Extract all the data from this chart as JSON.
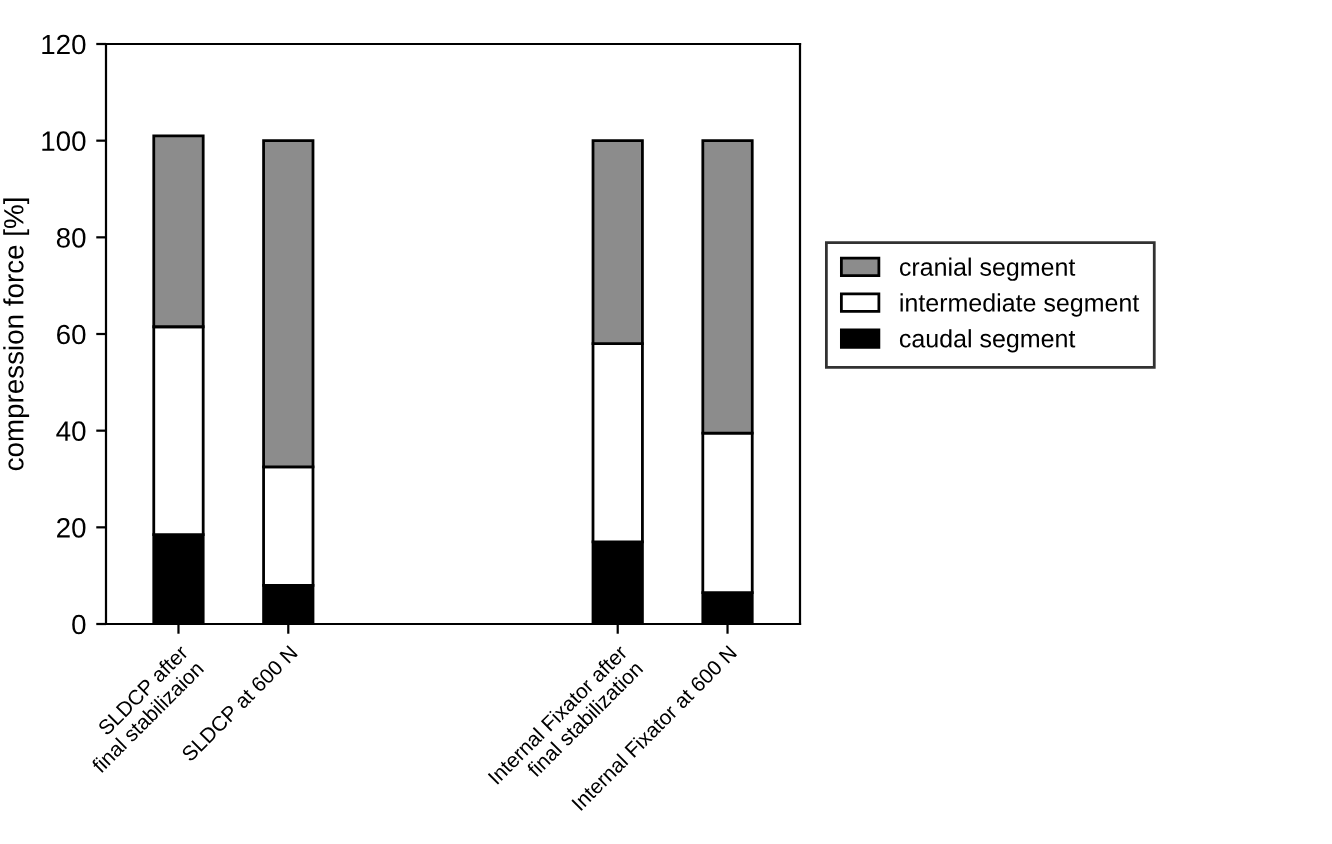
{
  "chart_data": {
    "type": "bar",
    "stacked": true,
    "ylabel": "compression force [%]",
    "categories": [
      "SLDCP after\nfinal stabilizaion",
      "SLDCP at 600 N",
      null,
      null,
      "Internal Fixator after\nfinal stabilization",
      "Internal Fixator at 600 N"
    ],
    "series": [
      {
        "name": "caudal segment",
        "color": "#000000",
        "values": [
          18.5,
          8,
          null,
          null,
          17,
          6.5
        ]
      },
      {
        "name": "intermediate segment",
        "color": "#ffffff",
        "values": [
          43,
          24.5,
          null,
          null,
          41,
          33
        ]
      },
      {
        "name": "cranial segment",
        "color": "#8c8c8c",
        "values": [
          39.5,
          67.5,
          null,
          null,
          42,
          60.5
        ]
      }
    ],
    "ylim": [
      0,
      120
    ],
    "yticks": [
      0,
      20,
      40,
      60,
      80,
      100,
      120
    ],
    "grid": false,
    "legend": "right"
  }
}
